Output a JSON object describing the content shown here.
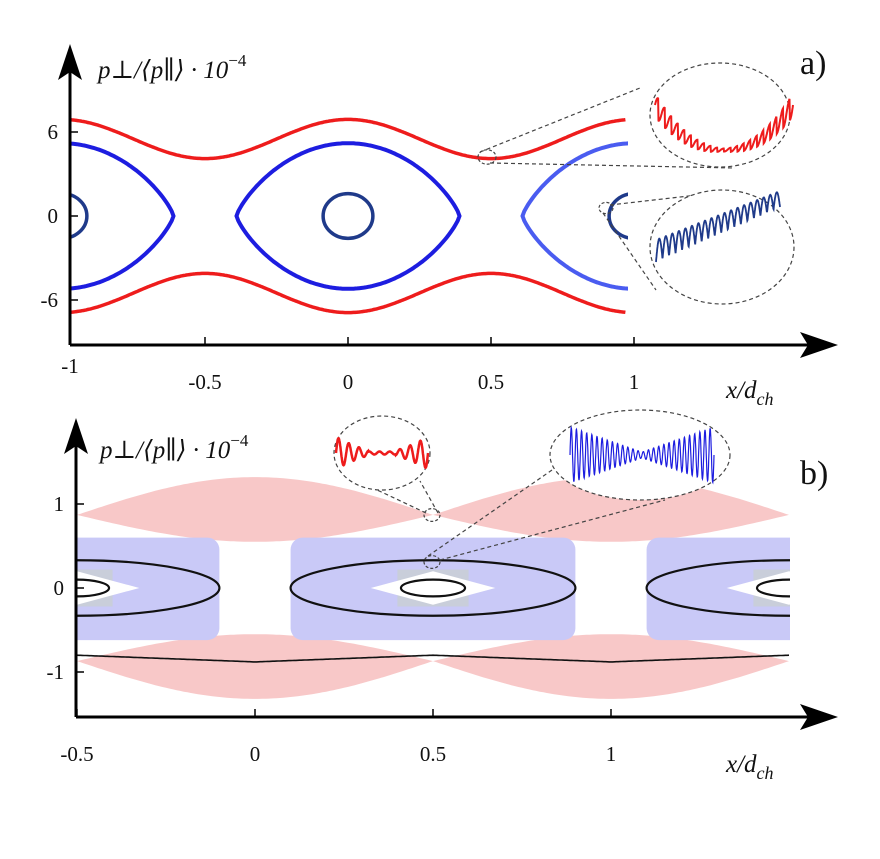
{
  "chart_data": [
    {
      "type": "line",
      "panel_label": "a)",
      "ylabel": "p⊥/⟨p∥⟩ · 10",
      "ylabel_exponent": "−4",
      "xlabel": "x/d",
      "xlabel_sub": "ch",
      "xticks": [
        "-1",
        "-0.5",
        "0",
        "0.5",
        "1"
      ],
      "xtick_values": [
        -1,
        -0.5,
        0,
        0.5,
        1
      ],
      "yticks": [
        "6",
        "0",
        "-6"
      ],
      "ytick_values": [
        6,
        0,
        -6
      ],
      "xlim": [
        -1,
        1.7
      ],
      "ylim": [
        -9,
        12
      ],
      "series": [
        {
          "name": "red trajectory (upper)",
          "color": "#ee1c1c",
          "kind": "cosine",
          "mean": 5.5,
          "amplitude": 1.4,
          "period": 1,
          "sign": 1
        },
        {
          "name": "red trajectory (lower)",
          "color": "#ee1c1c",
          "kind": "cosine",
          "mean": 5.5,
          "amplitude": 1.4,
          "period": 1,
          "sign": -1
        },
        {
          "name": "blue separatrix",
          "color": "#1d1de0",
          "kind": "separatrix",
          "centers": [
            -1,
            0,
            1
          ],
          "half_width": 0.39,
          "height": 5.2
        },
        {
          "name": "dark blue orbit",
          "color": "#1f3a8a",
          "kind": "ellipse",
          "centers": [
            -1,
            0,
            1
          ],
          "rx": 0.087,
          "ry": 1.6
        }
      ],
      "insets": [
        {
          "name": "red zoom inset",
          "color": "#ee1c1c",
          "at_x": 0.48,
          "at_p": 4.2
        },
        {
          "name": "blue zoom inset",
          "color": "#1f3a8a",
          "at_x": 0.9,
          "at_p": 0.6
        }
      ]
    },
    {
      "type": "area",
      "panel_label": "b)",
      "ylabel": "p⊥/⟨p∥⟩ · 10",
      "ylabel_exponent": "−4",
      "xlabel": "x/d",
      "xlabel_sub": "ch",
      "xticks": [
        "-0.5",
        "0",
        "0.5",
        "1"
      ],
      "xtick_values": [
        -0.5,
        0,
        0.5,
        1
      ],
      "yticks": [
        "1",
        "0",
        "-1"
      ],
      "ytick_values": [
        1,
        0,
        -1
      ],
      "xlim": [
        -0.5,
        1.6
      ],
      "ylim": [
        -1.5,
        2
      ],
      "series": [
        {
          "name": "red band",
          "color": "#f8c8c8",
          "kind": "lens",
          "centers": [
            0,
            1
          ],
          "mid": 0.87,
          "outer": 0.45,
          "inner": 0.32
        },
        {
          "name": "blue band",
          "color": "#c9c9f7",
          "kind": "block",
          "centers": [
            -0.5,
            0.5,
            1.5
          ],
          "half_width": 0.4,
          "p_top": 0.6,
          "p_bottom": -0.62
        },
        {
          "name": "grey band",
          "color": "#c9ceda",
          "kind": "block",
          "centers": [
            -0.5,
            0.5,
            1.5
          ],
          "half_width": 0.1,
          "p_top": 0.22,
          "p_bottom": -0.22
        },
        {
          "name": "black large orbit",
          "color": "#111111",
          "kind": "ellipse",
          "centers": [
            -0.5,
            0.5,
            1.5
          ],
          "rx": 0.4,
          "ry": 0.33
        },
        {
          "name": "black small orbit",
          "color": "#111111",
          "kind": "ellipse",
          "centers": [
            -0.5,
            0.5,
            1.5
          ],
          "rx": 0.09,
          "ry": 0.1
        },
        {
          "name": "black lower trajectory",
          "color": "#111111",
          "kind": "cosine",
          "mean": 0.84,
          "amplitude": 0.04,
          "period": 1,
          "sign": -1
        }
      ],
      "insets": [
        {
          "name": "red zoom inset",
          "color": "#ee1c1c",
          "at_x": 0.5,
          "at_p": 0.87
        },
        {
          "name": "blue zoom inset",
          "color": "#1d1de0",
          "at_x": 0.5,
          "at_p": 0.32
        }
      ]
    }
  ]
}
